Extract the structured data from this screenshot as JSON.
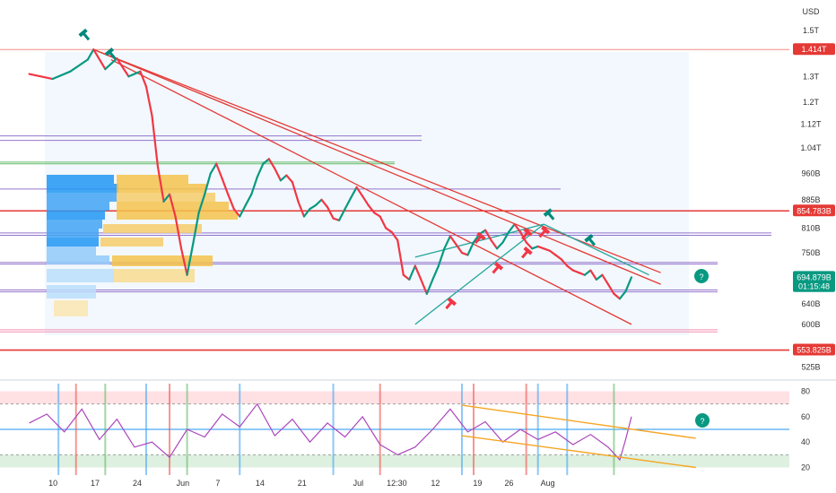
{
  "currency": "USD",
  "chart_data": [
    {
      "type": "line",
      "panel": "price",
      "title": "",
      "y_axis_scale": "log",
      "y_ticks": [
        "1.5T",
        "1.3T",
        "1.2T",
        "1.12T",
        "1.04T",
        "960B",
        "885B",
        "810B",
        "750B",
        "690B",
        "640B",
        "600B",
        "525B"
      ],
      "y_tick_values": [
        1500,
        1300,
        1200,
        1120,
        1040,
        960,
        885,
        810,
        750,
        690,
        640,
        600,
        525
      ],
      "x_ticks": [
        "10",
        "17",
        "24",
        "Jun",
        "7",
        "14",
        "21",
        "Jul",
        "12:30",
        "12",
        "19",
        "26",
        "Aug"
      ],
      "ylim": [
        510,
        1650
      ],
      "price_labels": [
        {
          "label": "1.414T",
          "value": 1414,
          "color": "#e53935"
        },
        {
          "label": "854.783B",
          "value": 854.8,
          "color": "#e53935"
        },
        {
          "label": "694.879B",
          "value": 694.9,
          "color": "#089981"
        },
        {
          "label": "01:15:48",
          "value": 675,
          "color": "#089981"
        },
        {
          "label": "553.825B",
          "value": 553.8,
          "color": "#e53935"
        }
      ],
      "horizontal_levels": [
        {
          "value": 1414,
          "color": "#f28b82"
        },
        {
          "value": 1080,
          "color": "#9575cd"
        },
        {
          "value": 1065,
          "color": "#9575cd"
        },
        {
          "value": 995,
          "color": "#66bb6a"
        },
        {
          "value": 990,
          "color": "#66bb6a"
        },
        {
          "value": 915,
          "color": "#9575cd"
        },
        {
          "value": 854.8,
          "color": "#e53935"
        },
        {
          "value": 798,
          "color": "#9575cd"
        },
        {
          "value": 792,
          "color": "#9575cd"
        },
        {
          "value": 728,
          "color": "#9575cd"
        },
        {
          "value": 724,
          "color": "#9575cd"
        },
        {
          "value": 668,
          "color": "#9575cd"
        },
        {
          "value": 664,
          "color": "#9575cd"
        },
        {
          "value": 590,
          "color": "#f48fb1"
        },
        {
          "value": 586,
          "color": "#f48fb1"
        },
        {
          "value": 553.8,
          "color": "#e53935"
        }
      ],
      "price_series": [
        {
          "t": 0,
          "v": 1310
        },
        {
          "t": 4,
          "v": 1290
        },
        {
          "t": 7,
          "v": 1320
        },
        {
          "t": 10,
          "v": 1370
        },
        {
          "t": 11,
          "v": 1414
        },
        {
          "t": 13,
          "v": 1330
        },
        {
          "t": 15,
          "v": 1375
        },
        {
          "t": 17,
          "v": 1300
        },
        {
          "t": 19,
          "v": 1320
        },
        {
          "t": 20,
          "v": 1260
        },
        {
          "t": 21,
          "v": 1150
        },
        {
          "t": 22,
          "v": 980
        },
        {
          "t": 23,
          "v": 880
        },
        {
          "t": 24,
          "v": 900
        },
        {
          "t": 25,
          "v": 840
        },
        {
          "t": 26,
          "v": 760
        },
        {
          "t": 27,
          "v": 700
        },
        {
          "t": 28,
          "v": 770
        },
        {
          "t": 29,
          "v": 850
        },
        {
          "t": 30,
          "v": 900
        },
        {
          "t": 31,
          "v": 960
        },
        {
          "t": 32,
          "v": 990
        },
        {
          "t": 33,
          "v": 945
        },
        {
          "t": 34,
          "v": 900
        },
        {
          "t": 35,
          "v": 860
        },
        {
          "t": 36,
          "v": 840
        },
        {
          "t": 37,
          "v": 870
        },
        {
          "t": 38,
          "v": 900
        },
        {
          "t": 39,
          "v": 950
        },
        {
          "t": 40,
          "v": 990
        },
        {
          "t": 41,
          "v": 1005
        },
        {
          "t": 42,
          "v": 975
        },
        {
          "t": 43,
          "v": 940
        },
        {
          "t": 44,
          "v": 955
        },
        {
          "t": 45,
          "v": 935
        },
        {
          "t": 46,
          "v": 880
        },
        {
          "t": 47,
          "v": 840
        },
        {
          "t": 48,
          "v": 860
        },
        {
          "t": 49,
          "v": 870
        },
        {
          "t": 50,
          "v": 885
        },
        {
          "t": 51,
          "v": 865
        },
        {
          "t": 52,
          "v": 835
        },
        {
          "t": 53,
          "v": 830
        },
        {
          "t": 54,
          "v": 860
        },
        {
          "t": 55,
          "v": 890
        },
        {
          "t": 56,
          "v": 920
        },
        {
          "t": 57,
          "v": 895
        },
        {
          "t": 58,
          "v": 870
        },
        {
          "t": 59,
          "v": 850
        },
        {
          "t": 60,
          "v": 840
        },
        {
          "t": 61,
          "v": 810
        },
        {
          "t": 62,
          "v": 800
        },
        {
          "t": 63,
          "v": 780
        },
        {
          "t": 64,
          "v": 700
        },
        {
          "t": 65,
          "v": 690
        },
        {
          "t": 66,
          "v": 720
        },
        {
          "t": 67,
          "v": 690
        },
        {
          "t": 68,
          "v": 660
        },
        {
          "t": 69,
          "v": 690
        },
        {
          "t": 70,
          "v": 720
        },
        {
          "t": 71,
          "v": 760
        },
        {
          "t": 72,
          "v": 790
        },
        {
          "t": 73,
          "v": 770
        },
        {
          "t": 74,
          "v": 750
        },
        {
          "t": 75,
          "v": 745
        },
        {
          "t": 76,
          "v": 775
        },
        {
          "t": 77,
          "v": 795
        },
        {
          "t": 78,
          "v": 805
        },
        {
          "t": 79,
          "v": 780
        },
        {
          "t": 80,
          "v": 760
        },
        {
          "t": 81,
          "v": 775
        },
        {
          "t": 82,
          "v": 800
        },
        {
          "t": 83,
          "v": 820
        },
        {
          "t": 84,
          "v": 800
        },
        {
          "t": 85,
          "v": 775
        },
        {
          "t": 86,
          "v": 760
        },
        {
          "t": 87,
          "v": 765
        },
        {
          "t": 88,
          "v": 760
        },
        {
          "t": 89,
          "v": 755
        },
        {
          "t": 90,
          "v": 745
        },
        {
          "t": 91,
          "v": 735
        },
        {
          "t": 92,
          "v": 720
        },
        {
          "t": 93,
          "v": 710
        },
        {
          "t": 94,
          "v": 705
        },
        {
          "t": 95,
          "v": 700
        },
        {
          "t": 96,
          "v": 710
        },
        {
          "t": 97,
          "v": 690
        },
        {
          "t": 98,
          "v": 700
        },
        {
          "t": 99,
          "v": 680
        },
        {
          "t": 100,
          "v": 660
        },
        {
          "t": 101,
          "v": 650
        },
        {
          "t": 102,
          "v": 665
        },
        {
          "t": 103,
          "v": 694.9
        }
      ],
      "trend_lines": [
        {
          "from": [
            11,
            1414
          ],
          "to": [
            108,
            680
          ],
          "color": "#e53935"
        },
        {
          "from": [
            11,
            1414
          ],
          "to": [
            108,
            705
          ],
          "color": "#e53935"
        },
        {
          "from": [
            14,
            1370
          ],
          "to": [
            103,
            600
          ],
          "color": "#e53935"
        },
        {
          "from": [
            66,
            600
          ],
          "to": [
            88,
            820
          ],
          "color": "#26a69a"
        },
        {
          "from": [
            66,
            740
          ],
          "to": [
            88,
            820
          ],
          "color": "#26a69a"
        },
        {
          "from": [
            88,
            820
          ],
          "to": [
            106,
            700
          ],
          "color": "#26a69a"
        }
      ],
      "markers": [
        {
          "t": 9.5,
          "v": 1480,
          "direction": "bullish"
        },
        {
          "t": 14,
          "v": 1395,
          "direction": "bullish"
        },
        {
          "t": 89,
          "v": 845,
          "direction": "bullish"
        },
        {
          "t": 96,
          "v": 780,
          "direction": "bullish"
        },
        {
          "t": 77,
          "v": 785,
          "direction": "bearish"
        },
        {
          "t": 85,
          "v": 795,
          "direction": "bearish"
        },
        {
          "t": 88,
          "v": 800,
          "direction": "bearish"
        },
        {
          "t": 72,
          "v": 640,
          "direction": "bearish"
        },
        {
          "t": 80,
          "v": 715,
          "direction": "bearish"
        },
        {
          "t": 85,
          "v": 750,
          "direction": "bearish"
        }
      ]
    },
    {
      "type": "line",
      "panel": "oscillator",
      "title": "",
      "y_ticks": [
        "80",
        "60",
        "40",
        "20"
      ],
      "y_tick_values": [
        80,
        60,
        40,
        20
      ],
      "ylim": [
        14,
        86
      ],
      "bands": [
        {
          "from": 70,
          "to": 80,
          "color": "#ffcdd2"
        },
        {
          "from": 20,
          "to": 30,
          "color": "#c8e6c9"
        }
      ],
      "levels": [
        50,
        70,
        30
      ],
      "oscillator_series": [
        {
          "t": 0,
          "v": 55
        },
        {
          "t": 3,
          "v": 62
        },
        {
          "t": 6,
          "v": 48
        },
        {
          "t": 9,
          "v": 66
        },
        {
          "t": 12,
          "v": 42
        },
        {
          "t": 15,
          "v": 58
        },
        {
          "t": 18,
          "v": 36
        },
        {
          "t": 21,
          "v": 40
        },
        {
          "t": 24,
          "v": 28
        },
        {
          "t": 27,
          "v": 50
        },
        {
          "t": 30,
          "v": 44
        },
        {
          "t": 33,
          "v": 62
        },
        {
          "t": 36,
          "v": 52
        },
        {
          "t": 39,
          "v": 70
        },
        {
          "t": 42,
          "v": 45
        },
        {
          "t": 45,
          "v": 58
        },
        {
          "t": 48,
          "v": 40
        },
        {
          "t": 51,
          "v": 55
        },
        {
          "t": 54,
          "v": 44
        },
        {
          "t": 57,
          "v": 60
        },
        {
          "t": 60,
          "v": 38
        },
        {
          "t": 63,
          "v": 30
        },
        {
          "t": 66,
          "v": 36
        },
        {
          "t": 69,
          "v": 50
        },
        {
          "t": 72,
          "v": 66
        },
        {
          "t": 75,
          "v": 48
        },
        {
          "t": 78,
          "v": 56
        },
        {
          "t": 81,
          "v": 40
        },
        {
          "t": 84,
          "v": 50
        },
        {
          "t": 87,
          "v": 42
        },
        {
          "t": 90,
          "v": 48
        },
        {
          "t": 93,
          "v": 38
        },
        {
          "t": 96,
          "v": 46
        },
        {
          "t": 99,
          "v": 36
        },
        {
          "t": 101,
          "v": 26
        },
        {
          "t": 102,
          "v": 42
        },
        {
          "t": 103,
          "v": 60
        }
      ],
      "trend_lines": [
        {
          "from": [
            74,
            69
          ],
          "to": [
            114,
            43
          ],
          "color": "#f5a623"
        },
        {
          "from": [
            74,
            45
          ],
          "to": [
            114,
            20
          ],
          "color": "#f5a623"
        }
      ]
    }
  ],
  "help_icon_label": "?"
}
